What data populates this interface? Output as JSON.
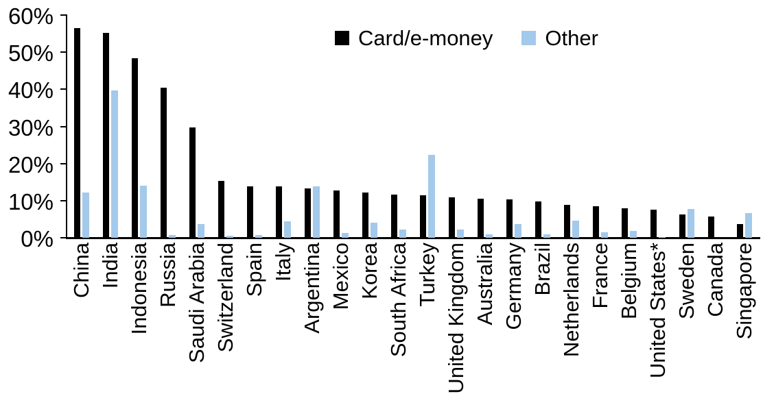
{
  "chart_data": {
    "type": "bar",
    "title": "",
    "xlabel": "",
    "ylabel": "",
    "ylim": [
      0,
      60
    ],
    "grid": false,
    "legend_position": "top-center",
    "ytick_labels": [
      "0%",
      "10%",
      "20%",
      "30%",
      "40%",
      "50%",
      "60%"
    ],
    "ytick_values": [
      0,
      10,
      20,
      30,
      40,
      50,
      60
    ],
    "categories": [
      "China",
      "India",
      "Indonesia",
      "Russia",
      "Saudi Arabia",
      "Switzerland",
      "Spain",
      "Italy",
      "Argentina",
      "Mexico",
      "Korea",
      "South Africa",
      "Turkey",
      "United Kingdom",
      "Australia",
      "Germany",
      "Brazil",
      "Netherlands",
      "France",
      "Belgium",
      "United States*",
      "Sweden",
      "Canada",
      "Singapore"
    ],
    "series": [
      {
        "name": "Card/e-money",
        "color": "#000000",
        "values": [
          56.4,
          55.2,
          48.3,
          40.5,
          29.8,
          15.3,
          13.9,
          13.8,
          13.2,
          12.8,
          12.2,
          11.7,
          11.5,
          10.9,
          10.5,
          10.4,
          9.8,
          8.9,
          8.4,
          7.9,
          7.6,
          6.3,
          5.8,
          3.6
        ]
      },
      {
        "name": "Other",
        "color": "#A3C9EB",
        "values": [
          12.1,
          39.7,
          14.1,
          0.8,
          3.6,
          0.6,
          0.8,
          4.4,
          13.8,
          1.2,
          4.1,
          2.2,
          22.4,
          2.2,
          0.9,
          3.7,
          0.9,
          4.6,
          1.4,
          1.9,
          0.2,
          7.8,
          0.0,
          6.6
        ]
      }
    ]
  }
}
